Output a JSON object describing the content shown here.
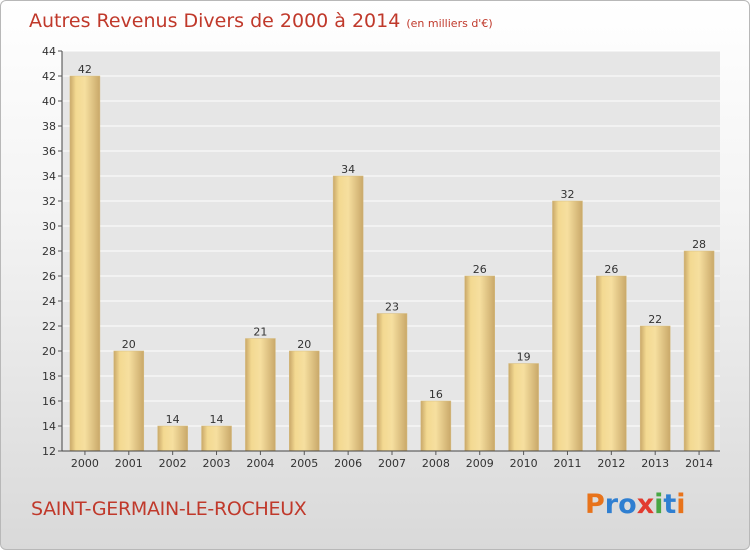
{
  "header": {
    "title": "Autres Revenus Divers de 2000 à 2014",
    "unit": "(en milliers d'€)"
  },
  "footer": {
    "commune": "SAINT-GERMAIN-LE-ROCHEUX",
    "logo_text": "Proxiti",
    "logo_colors": [
      "#e8731b",
      "#2f7fd1",
      "#2f7fd1",
      "#e23b2f",
      "#49a745",
      "#2f7fd1",
      "#e8731b"
    ]
  },
  "colors": {
    "bar_light": "#f5dc9b",
    "bar_dark": "#c9a869",
    "grid": "#ffffff",
    "text_accent": "#c0392b"
  },
  "chart_data": {
    "type": "bar",
    "title": "Autres Revenus Divers de 2000 à 2014",
    "subtitle": "(en milliers d'€)",
    "categories": [
      "2000",
      "2001",
      "2002",
      "2003",
      "2004",
      "2005",
      "2006",
      "2007",
      "2008",
      "2009",
      "2010",
      "2011",
      "2012",
      "2013",
      "2014"
    ],
    "values": [
      42,
      20,
      14,
      14,
      21,
      20,
      34,
      23,
      16,
      26,
      19,
      32,
      26,
      22,
      28
    ],
    "ylim": [
      12,
      44
    ],
    "yticks": [
      12,
      14,
      16,
      18,
      20,
      22,
      24,
      26,
      28,
      30,
      32,
      34,
      36,
      38,
      40,
      42,
      44
    ],
    "grid": true,
    "xlabel": "",
    "ylabel": ""
  }
}
